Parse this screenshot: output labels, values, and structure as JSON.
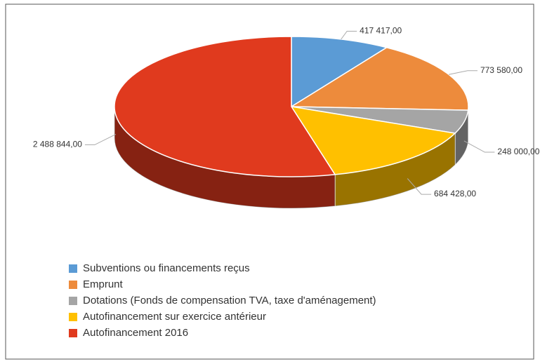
{
  "chart_data": {
    "type": "pie3d",
    "categories": [
      "Subventions ou financements reçus",
      "Emprunt",
      "Dotations (Fonds de compensation TVA, taxe d'aménagement)",
      "Autofinancement sur exercice antérieur",
      "Autofinancement 2016"
    ],
    "values": [
      417417,
      773580,
      248000,
      684428,
      2488844
    ],
    "value_labels": [
      "417 417,00",
      "773 580,00",
      "248 000,00",
      "684 428,00",
      "2 488 844,00"
    ],
    "colors": [
      "#5b9bd5",
      "#ed8b3c",
      "#a5a5a5",
      "#ffc000",
      "#e03a1e"
    ],
    "legend": "bottom-left"
  }
}
